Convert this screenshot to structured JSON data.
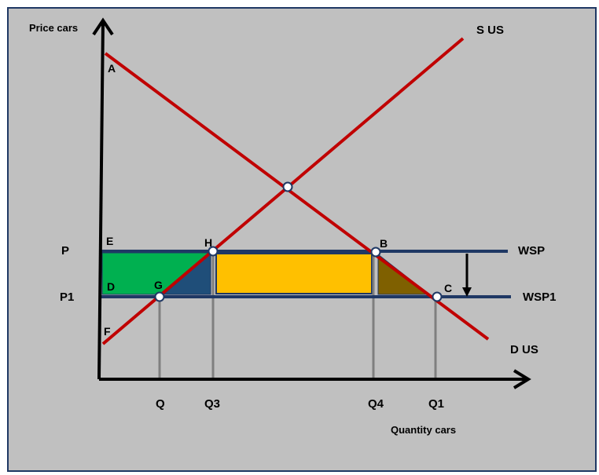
{
  "diagram": {
    "axes": {
      "y_label": "Price cars",
      "x_label": "Quantity cars"
    },
    "curves": {
      "supply_label": "S US",
      "demand_label": "D US",
      "supply_color": "#C00000",
      "demand_color": "#C00000"
    },
    "price_lines": {
      "upper_label": "WSP",
      "lower_label": "WSP1",
      "color": "#1F3864"
    },
    "price_labels": {
      "upper": "P",
      "lower": "P1"
    },
    "quantity_labels": {
      "q": "Q",
      "q3": "Q3",
      "q4": "Q4",
      "q1": "Q1"
    },
    "points": {
      "a": "A",
      "e": "E",
      "h": "H",
      "b": "B",
      "d": "D",
      "g": "G",
      "c": "C",
      "f": "F"
    },
    "areas": {
      "green": "#00B050",
      "blue": "#1F4E79",
      "yellow": "#FFC000",
      "brown": "#7F6000"
    },
    "background": "#C0C0C0",
    "border_color": "#1F3864"
  }
}
